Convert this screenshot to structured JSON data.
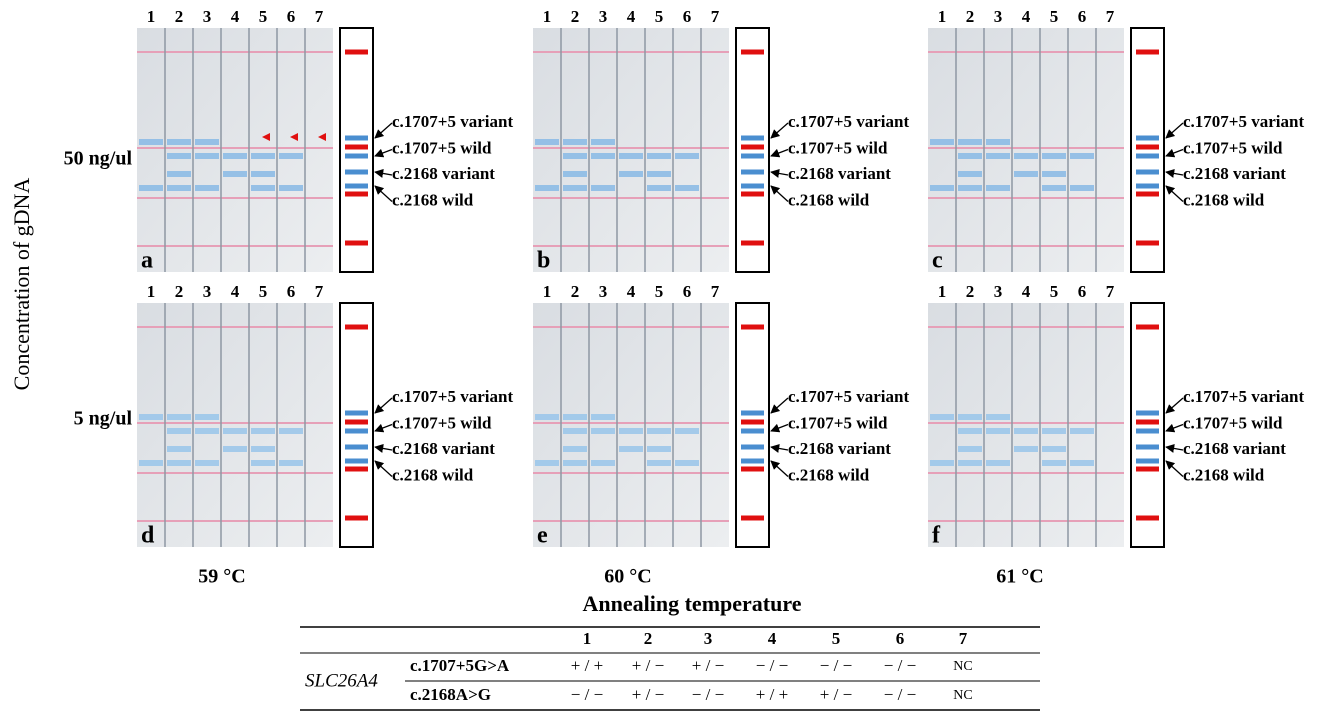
{
  "y_axis_label": "Concentration of gDNA",
  "x_axis_label": "Annealing temperature",
  "concentrations": [
    "50 ng/ul",
    "5 ng/ul"
  ],
  "temperatures": [
    "59 °C",
    "60 °C",
    "61 °C"
  ],
  "panels": [
    "a",
    "b",
    "c",
    "d",
    "e",
    "f"
  ],
  "lanes": [
    "1",
    "2",
    "3",
    "4",
    "5",
    "6",
    "7"
  ],
  "bands": [
    "c.1707+5 variant",
    "c.1707+5 wild",
    "c.2168 variant",
    "c.2168 wild"
  ],
  "table": {
    "gene": "SLC26A4",
    "rows": [
      {
        "label": "c.1707+5G>A",
        "cells": [
          "+ / +",
          "+ / −",
          "+ / −",
          "− / −",
          "− / −",
          "− / −",
          "NC"
        ]
      },
      {
        "label": "c.2168A>G",
        "cells": [
          "− / −",
          "+ / −",
          "− / −",
          "+ / +",
          "+ / −",
          "− / −",
          "NC"
        ]
      }
    ]
  }
}
